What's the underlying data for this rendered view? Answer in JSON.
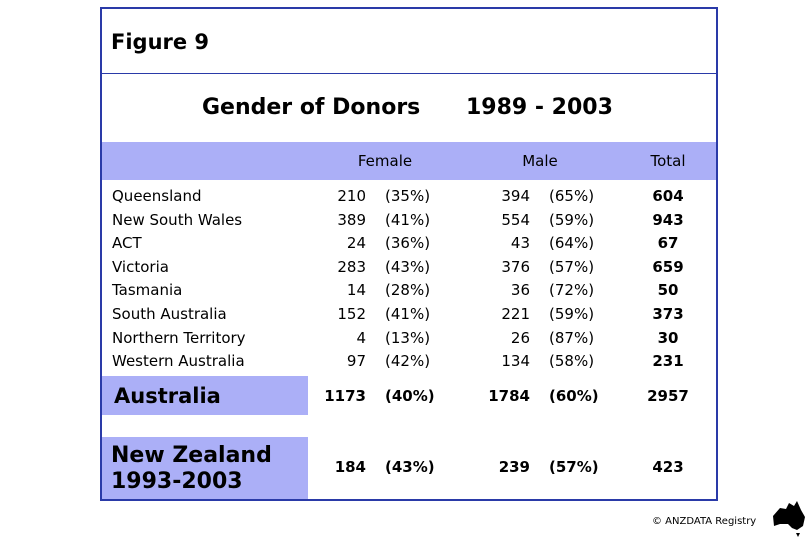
{
  "figure": "Figure 9",
  "title": {
    "text": "Gender of Donors",
    "period": "1989 - 2003"
  },
  "header": [
    "Female",
    "Male",
    "Total"
  ],
  "table": {
    "rows": [
      [
        "Queensland",
        "210",
        "(35%)",
        "394",
        "(65%)",
        "604"
      ],
      [
        "New South Wales",
        "389",
        "(41%)",
        "554",
        "(59%)",
        "943"
      ],
      [
        "ACT",
        "24",
        "(36%)",
        "43",
        "(64%)",
        "67"
      ],
      [
        "Victoria",
        "283",
        "(43%)",
        "376",
        "(57%)",
        "659"
      ],
      [
        "Tasmania",
        "14",
        "(28%)",
        "36",
        "(72%)",
        "50"
      ],
      [
        "South Australia",
        "152",
        "(41%)",
        "221",
        "(59%)",
        "373"
      ],
      [
        "Northern Territory",
        "4",
        "(13%)",
        "26",
        "(87%)",
        "30"
      ],
      [
        "Western Australia",
        "97",
        "(42%)",
        "134",
        "(58%)",
        "231"
      ]
    ]
  },
  "australia": [
    "Australia",
    "1173",
    "(40%)",
    "1784",
    "(60%)",
    "2957"
  ],
  "new_zealand": {
    "name": "New Zealand",
    "period": "1993-2003",
    "cells": [
      "184",
      "(43%)",
      "239",
      "(57%)",
      "423"
    ]
  },
  "footer": "© ANZDATA Registry"
}
